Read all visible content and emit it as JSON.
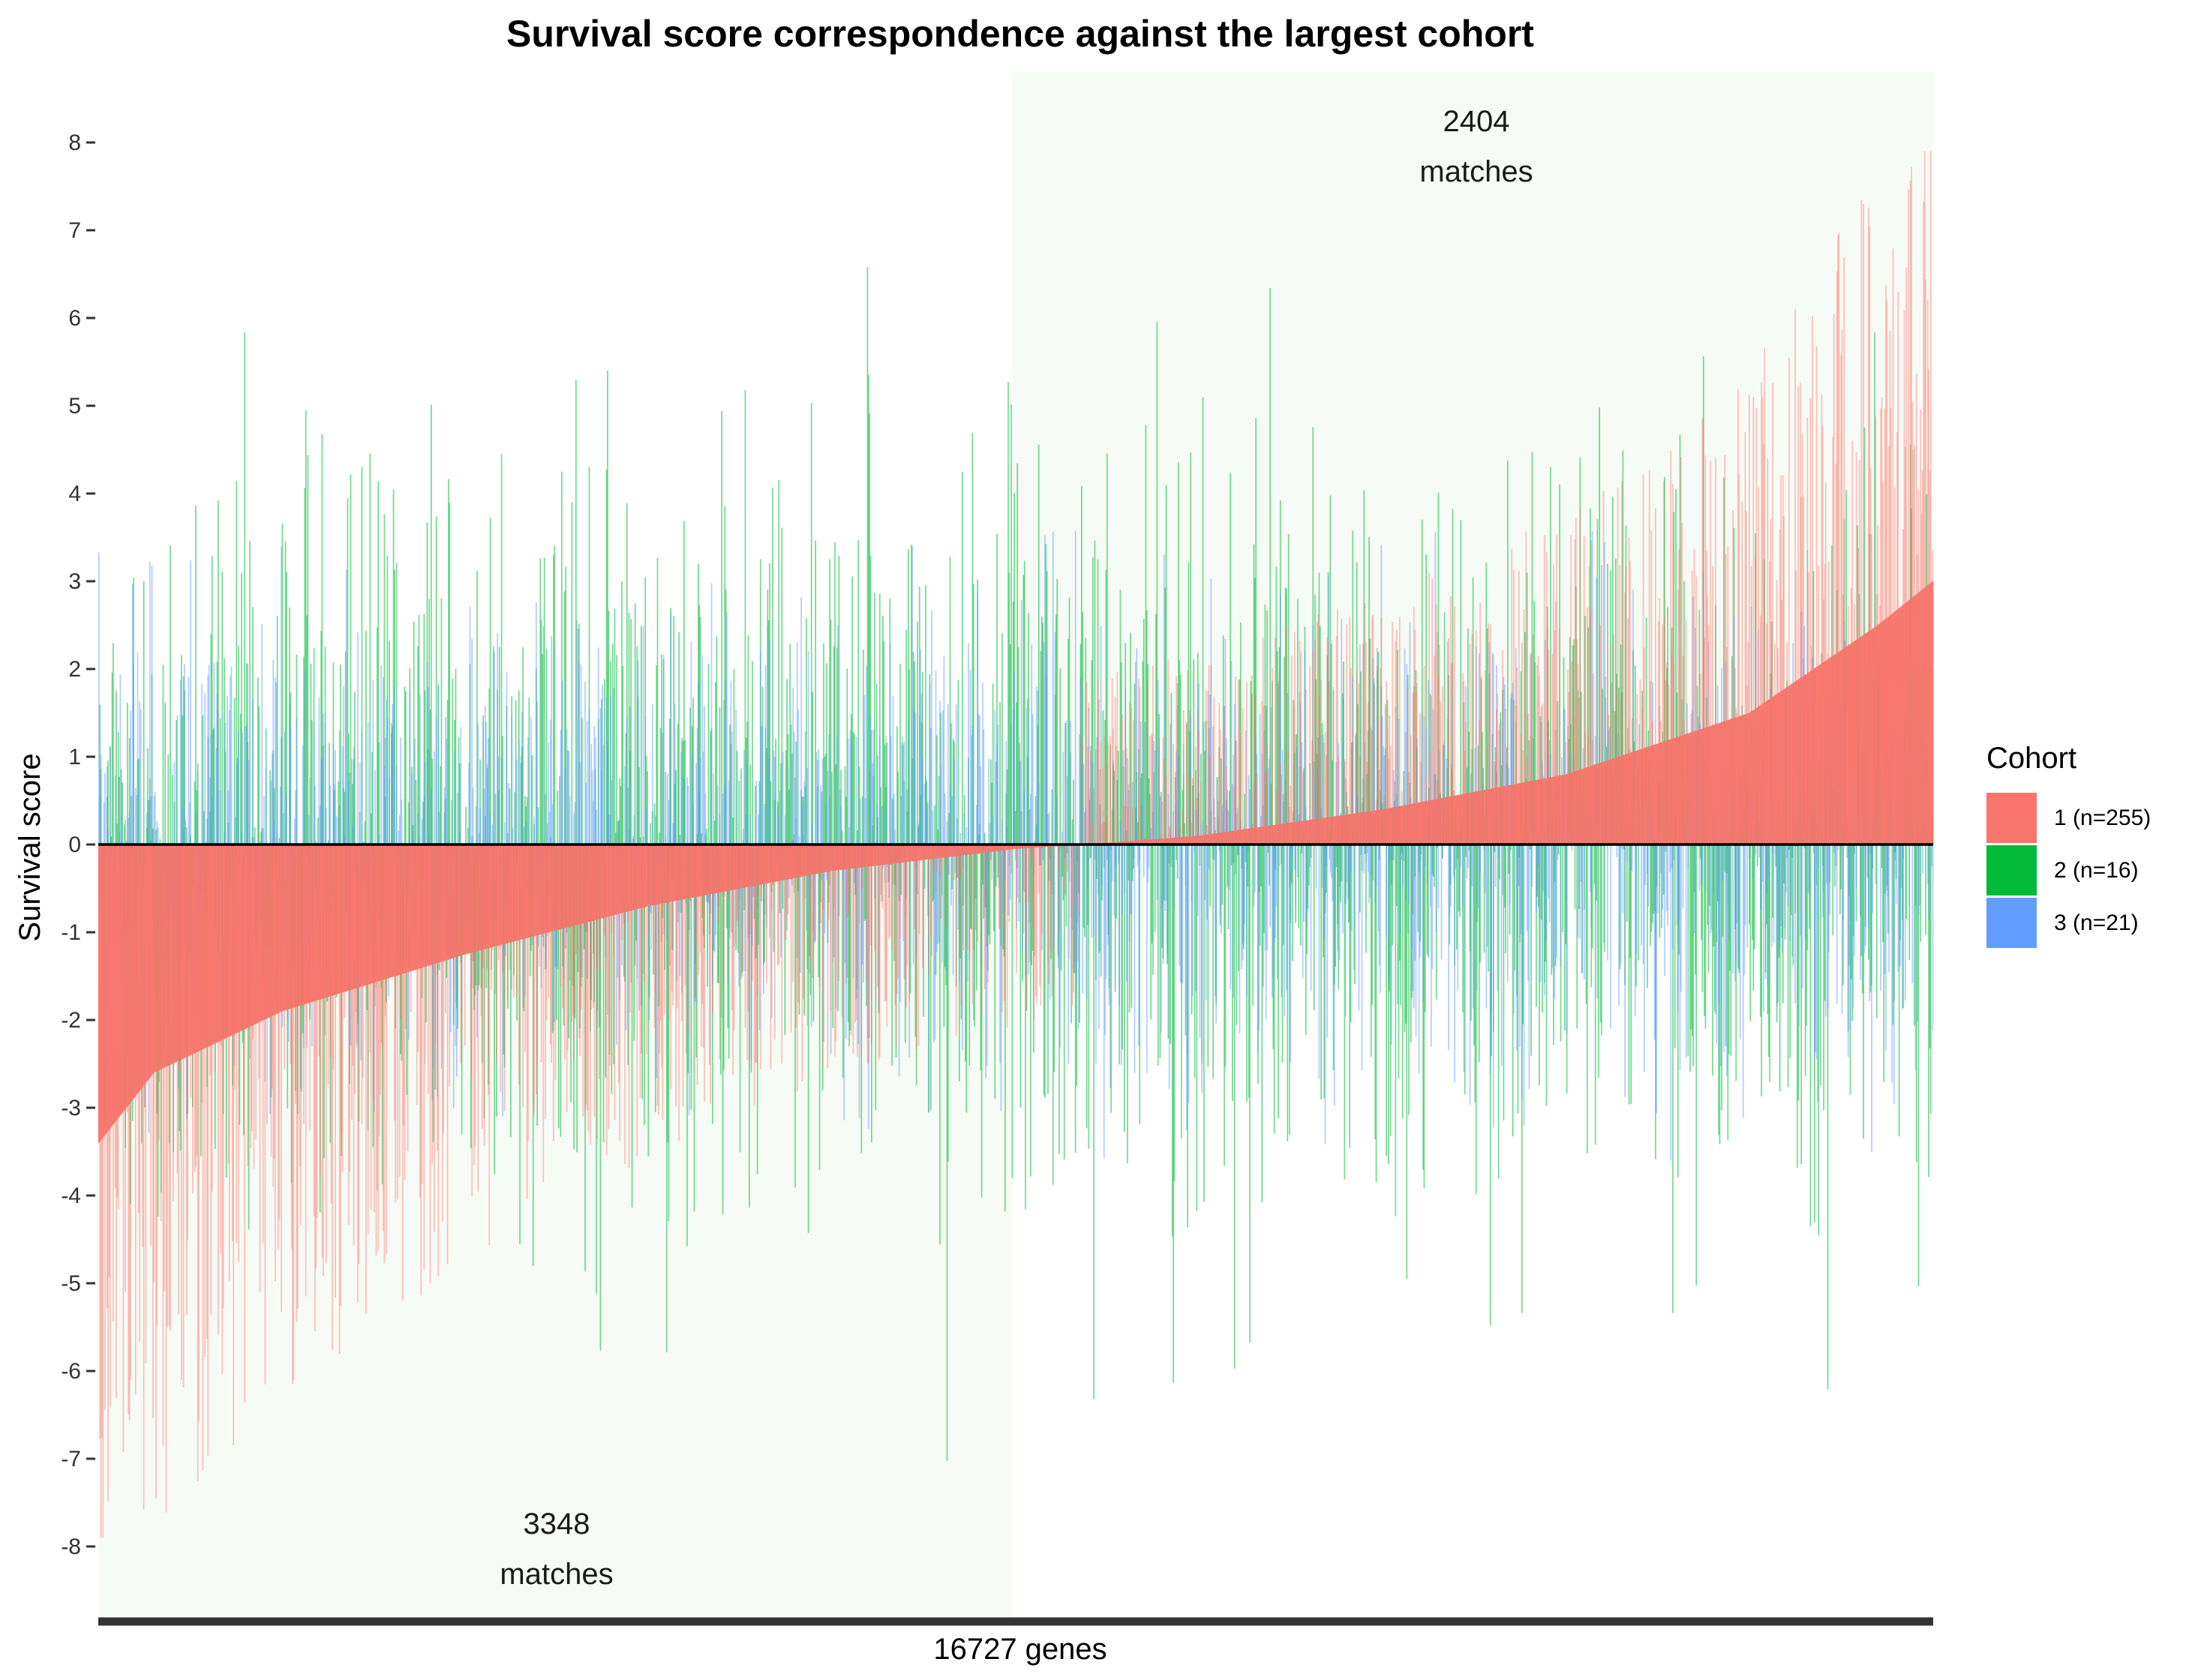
{
  "chart_data": {
    "type": "bar",
    "title": "Survival score correspondence against the largest cohort",
    "ylabel": "Survival score",
    "xlabel": "16727 genes",
    "ylim": [
      -8.8,
      8.8
    ],
    "yticks": [
      8,
      7,
      6,
      5,
      4,
      3,
      2,
      1,
      0,
      -1,
      -2,
      -3,
      -4,
      -5,
      -6,
      -7,
      -8
    ],
    "n_genes": 16727,
    "legend": {
      "title": "Cohort",
      "position": "right",
      "entries": [
        {
          "label": "1 (n=255)",
          "color": "#F8766D"
        },
        {
          "label": "2 (n=16)",
          "color": "#00BA38"
        },
        {
          "label": "3 (n=21)",
          "color": "#619CFF"
        }
      ]
    },
    "annotations": [
      {
        "count": "3348",
        "word": "matches",
        "region": "left"
      },
      {
        "count": "2404",
        "word": "matches",
        "region": "right"
      }
    ],
    "reference_series": {
      "name": "1 (n=255)",
      "sorted_profile_x": [
        0,
        0.03,
        0.1,
        0.2,
        0.3,
        0.4,
        0.5,
        0.55,
        0.6,
        0.7,
        0.8,
        0.9,
        0.97,
        1.0
      ],
      "sorted_profile_y": [
        -3.4,
        -2.6,
        -1.9,
        -1.25,
        -0.7,
        -0.3,
        -0.05,
        0.02,
        0.1,
        0.4,
        0.8,
        1.5,
        2.5,
        3.0
      ]
    },
    "grid": false
  }
}
